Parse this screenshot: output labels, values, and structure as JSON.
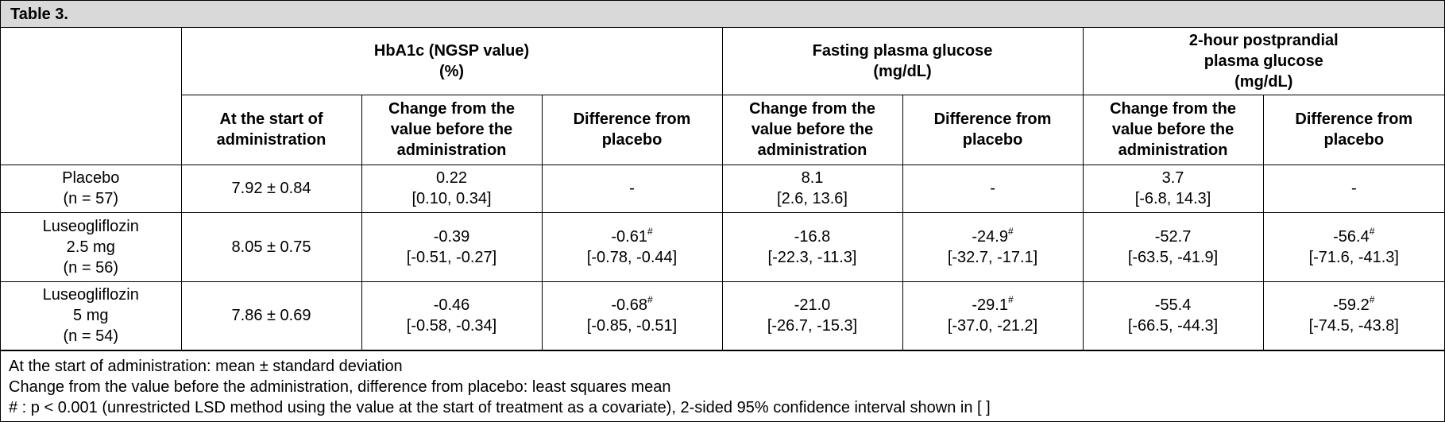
{
  "title": "Table 3.",
  "groups": [
    {
      "label_lines": [
        "HbA1c (NGSP value)",
        "(%)"
      ]
    },
    {
      "label_lines": [
        "Fasting plasma glucose",
        "(mg/dL)"
      ]
    },
    {
      "label_lines": [
        "2-hour postprandial",
        "plasma glucose",
        "(mg/dL)"
      ]
    }
  ],
  "subheaders": [
    {
      "lines": [
        "At the start of",
        "administration"
      ]
    },
    {
      "lines": [
        "Change from the",
        "value before the",
        "administration"
      ]
    },
    {
      "lines": [
        "Difference from",
        "placebo"
      ]
    },
    {
      "lines": [
        "Change from the",
        "value before the",
        "administration"
      ]
    },
    {
      "lines": [
        "Difference from",
        "placebo"
      ]
    },
    {
      "lines": [
        "Change from the",
        "value before the",
        "administration"
      ]
    },
    {
      "lines": [
        "Difference from",
        "placebo"
      ]
    }
  ],
  "rows": [
    {
      "label_lines": [
        "Placebo",
        "(n = 57)"
      ],
      "cells": [
        {
          "val": "7.92 ± 0.84",
          "sup": "",
          "ci": ""
        },
        {
          "val": "0.22",
          "sup": "",
          "ci": "[0.10, 0.34]"
        },
        {
          "val": "-",
          "sup": "",
          "ci": ""
        },
        {
          "val": "8.1",
          "sup": "",
          "ci": "[2.6, 13.6]"
        },
        {
          "val": "-",
          "sup": "",
          "ci": ""
        },
        {
          "val": "3.7",
          "sup": "",
          "ci": "[-6.8, 14.3]"
        },
        {
          "val": "-",
          "sup": "",
          "ci": ""
        }
      ]
    },
    {
      "label_lines": [
        "Luseogliflozin",
        "2.5 mg",
        "(n = 56)"
      ],
      "cells": [
        {
          "val": "8.05 ± 0.75",
          "sup": "",
          "ci": ""
        },
        {
          "val": "-0.39",
          "sup": "",
          "ci": "[-0.51, -0.27]"
        },
        {
          "val": "-0.61",
          "sup": "#",
          "ci": "[-0.78, -0.44]"
        },
        {
          "val": "-16.8",
          "sup": "",
          "ci": "[-22.3, -11.3]"
        },
        {
          "val": "-24.9",
          "sup": "#",
          "ci": "[-32.7, -17.1]"
        },
        {
          "val": "-52.7",
          "sup": "",
          "ci": "[-63.5, -41.9]"
        },
        {
          "val": "-56.4",
          "sup": "#",
          "ci": "[-71.6, -41.3]"
        }
      ]
    },
    {
      "label_lines": [
        "Luseogliflozin",
        "5 mg",
        "(n = 54)"
      ],
      "cells": [
        {
          "val": "7.86 ± 0.69",
          "sup": "",
          "ci": ""
        },
        {
          "val": "-0.46",
          "sup": "",
          "ci": "[-0.58, -0.34]"
        },
        {
          "val": "-0.68",
          "sup": "#",
          "ci": "[-0.85, -0.51]"
        },
        {
          "val": "-21.0",
          "sup": "",
          "ci": "[-26.7, -15.3]"
        },
        {
          "val": "-29.1",
          "sup": "#",
          "ci": "[-37.0, -21.2]"
        },
        {
          "val": "-55.4",
          "sup": "",
          "ci": "[-66.5, -44.3]"
        },
        {
          "val": "-59.2",
          "sup": "#",
          "ci": "[-74.5, -43.8]"
        }
      ]
    }
  ],
  "notes": [
    "At the start of administration: mean ± standard deviation",
    "Change from the value before the administration, difference from placebo: least squares mean",
    "# : p < 0.001 (unrestricted LSD method using the value at the start of treatment as a covariate), 2-sided 95% confidence interval shown in [ ]"
  ]
}
